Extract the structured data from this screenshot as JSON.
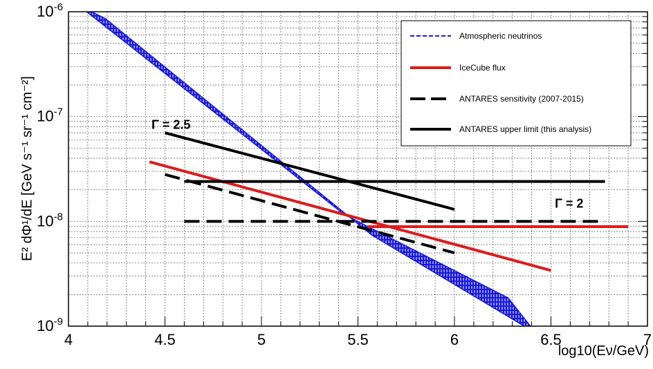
{
  "chart_data": {
    "type": "line",
    "xlabel": "log10(Eν/GeV)",
    "ylabel": "E² dΦ¹/dE [GeV s⁻¹ sr⁻¹ cm⁻²]",
    "xlim": [
      4,
      7
    ],
    "ylim": [
      1e-09,
      1e-06
    ],
    "y_scale": "log",
    "grid": true,
    "legend_position": "top-right",
    "x_ticks": [
      "4",
      "4.5",
      "5",
      "5.5",
      "6",
      "6.5",
      "7"
    ],
    "y_ticks": [
      {
        "value": 1e-09,
        "base": "10",
        "exp": "-9"
      },
      {
        "value": 1e-08,
        "base": "10",
        "exp": "-8"
      },
      {
        "value": 1e-07,
        "base": "10",
        "exp": "-7"
      },
      {
        "value": 1e-06,
        "base": "10",
        "exp": "-6"
      }
    ],
    "series": [
      {
        "name": "Atmospheric neutrinos",
        "style": "band",
        "color": "#1a1ad6",
        "x": [
          4.12,
          6.35
        ],
        "upper": [
          1e-06,
          1.6e-09
        ],
        "lower": [
          1e-06,
          1e-09
        ],
        "band_points": {
          "upper": [
            [
              4.12,
              1e-06
            ],
            [
              5.5,
              1e-08
            ],
            [
              6.35,
              1.6e-09
            ]
          ],
          "lower": [
            [
              4.12,
              1e-06
            ],
            [
              5.5,
              8.6e-09
            ],
            [
              6.35,
              1e-09
            ]
          ]
        }
      },
      {
        "name": "IceCube flux",
        "style": "solid",
        "color": "#dd1c1c",
        "segments": [
          [
            [
              4.42,
              3.7e-08
            ],
            [
              6.5,
              3.4e-09
            ]
          ],
          [
            [
              5.55,
              8.9e-09
            ],
            [
              6.9,
              8.9e-09
            ]
          ]
        ]
      },
      {
        "name": "ANTARES sensitivity (2007-2015)",
        "style": "dashed",
        "color": "#000000",
        "segments": [
          [
            [
              4.5,
              2.8e-08
            ],
            [
              6.0,
              5e-09
            ]
          ],
          [
            [
              4.6,
              1e-08
            ],
            [
              6.78,
              1e-08
            ]
          ]
        ]
      },
      {
        "name": "ANTARES upper limit (this analysis)",
        "style": "solid",
        "color": "#000000",
        "segments": [
          [
            [
              4.5,
              7e-08
            ],
            [
              6.0,
              1.3e-08
            ]
          ],
          [
            [
              4.6,
              2.4e-08
            ],
            [
              6.78,
              2.4e-08
            ]
          ]
        ]
      }
    ],
    "annotations": [
      {
        "text": "Γ = 2.5",
        "x": 4.43,
        "y": 7.6e-08
      },
      {
        "text": "Γ = 2",
        "x": 6.52,
        "y": 1.35e-08
      }
    ]
  }
}
